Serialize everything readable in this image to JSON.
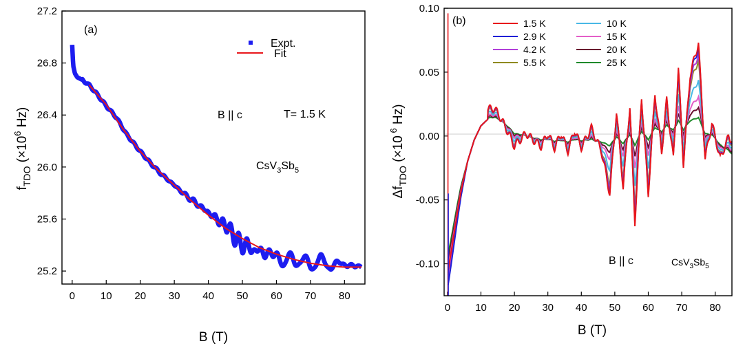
{
  "chart_data": [
    {
      "type": "line",
      "panel_label": "(a)",
      "xlabel": "B (T)",
      "ylabel": {
        "main": "f",
        "sub": "TDO",
        "rest": " (×10",
        "sup": "6",
        "end": " Hz)"
      },
      "xlim": [
        -3,
        86
      ],
      "ylim": [
        25.1,
        27.2
      ],
      "xticks": [
        0,
        10,
        20,
        30,
        40,
        50,
        60,
        70,
        80
      ],
      "yticks": [
        25.2,
        25.6,
        26.0,
        26.4,
        26.8,
        27.2
      ],
      "ytick_labels": [
        "25.2",
        "25.6",
        "26.0",
        "26.4",
        "26.8",
        "27.2"
      ],
      "legend": [
        {
          "name": "Expt.",
          "color": "#1d1df0",
          "marker": "square"
        },
        {
          "name": "Fit",
          "color": "#e8161b",
          "marker": "line"
        }
      ],
      "annotations": [
        {
          "text": "B || c"
        },
        {
          "text": "T= 1.5 K"
        },
        {
          "main": "CsV",
          "s1": "3",
          "mid": "Sb",
          "s2": "5"
        }
      ],
      "series": [
        {
          "name": "Expt.",
          "color": "#1d1df0",
          "x": [
            0,
            0.3,
            0.8,
            1.5,
            3,
            5,
            7,
            10,
            13,
            16,
            20,
            23,
            26,
            30,
            33,
            36,
            40,
            43,
            46,
            48,
            50,
            53,
            55,
            57,
            60,
            63,
            66,
            70,
            73,
            76,
            80,
            83,
            85
          ],
          "y": [
            26.94,
            26.78,
            26.72,
            26.69,
            26.67,
            26.63,
            26.57,
            26.47,
            26.38,
            26.25,
            26.12,
            26.03,
            25.95,
            25.86,
            25.79,
            25.73,
            25.65,
            25.59,
            25.53,
            25.45,
            25.4,
            25.38,
            25.33,
            25.36,
            25.3,
            25.28,
            25.29,
            25.25,
            25.28,
            25.24,
            25.26,
            25.23,
            25.24
          ],
          "osc": [
            [
              40,
              0.015,
              2.7
            ],
            [
              48,
              0.04,
              2.3
            ],
            [
              55,
              0.03,
              3.0
            ],
            [
              62,
              0.035,
              4.5
            ],
            [
              72,
              0.035,
              4.8
            ]
          ]
        },
        {
          "name": "Fit",
          "color": "#e8161b",
          "x": [
            5,
            10,
            15,
            20,
            25,
            30,
            35,
            40,
            45,
            50,
            55,
            60,
            65,
            70,
            75,
            80,
            85
          ],
          "y": [
            26.63,
            26.48,
            26.29,
            26.12,
            25.98,
            25.86,
            25.74,
            25.63,
            25.53,
            25.45,
            25.38,
            25.33,
            25.29,
            25.26,
            25.24,
            25.23,
            25.23
          ]
        }
      ]
    },
    {
      "type": "line",
      "panel_label": "(b)",
      "xlabel": "B (T)",
      "ylabel": {
        "pre": "Δf",
        "sub": "TDO",
        "rest": " (×10",
        "sup": " 6",
        "end": " Hz)"
      },
      "xlim": [
        -1,
        85
      ],
      "ylim": [
        -0.125,
        0.1
      ],
      "xticks": [
        0,
        10,
        20,
        30,
        40,
        50,
        60,
        70,
        80
      ],
      "yticks": [
        -0.1,
        -0.05,
        0.0,
        0.05,
        0.1
      ],
      "ytick_labels": [
        "-0.10",
        "-0.05",
        "0.00",
        "0.05",
        "0.10"
      ],
      "annotations": [
        {
          "text": "B || c"
        },
        {
          "main": "CsV",
          "s1": "3",
          "mid": "Sb",
          "s2": "5"
        }
      ],
      "background": {
        "x": [
          0,
          1,
          2,
          3,
          4,
          6,
          8,
          10,
          12,
          14,
          16,
          18,
          20,
          25,
          30,
          35,
          40,
          45,
          50,
          55,
          60,
          65,
          70,
          75,
          80,
          85
        ],
        "y": [
          -0.105,
          -0.09,
          -0.074,
          -0.058,
          -0.043,
          -0.02,
          -0.003,
          0.008,
          0.013,
          0.014,
          0.012,
          0.008,
          0.003,
          -0.001,
          -0.003,
          -0.004,
          -0.003,
          -0.004,
          -0.003,
          -0.001,
          0.002,
          0.006,
          0.008,
          0.008,
          -0.002,
          -0.015
        ]
      },
      "oscillation_peaks": {
        "x": [
          14,
          20,
          23.5,
          28,
          30,
          32,
          34,
          36,
          38,
          40,
          43,
          46,
          48.5,
          50.5,
          52.5,
          54.5,
          56,
          58,
          60,
          62,
          64,
          65.5,
          67.5,
          69,
          70.5,
          72.5,
          75,
          77,
          79,
          81.5,
          84
        ],
        "y": [
          0.008,
          -0.011,
          0.002,
          -0.006,
          0.005,
          -0.006,
          0.006,
          -0.008,
          0.008,
          -0.006,
          0.01,
          -0.008,
          -0.042,
          0.022,
          -0.038,
          0.025,
          -0.068,
          0.03,
          -0.048,
          0.03,
          -0.018,
          0.022,
          -0.025,
          0.045,
          -0.03,
          0.04,
          0.065,
          -0.022,
          0.01,
          -0.012,
          0.012
        ]
      },
      "spikes": [
        {
          "name": "1.5 K",
          "x": 0.15,
          "y": [
            -0.125,
            0.096
          ]
        },
        {
          "name": "2.9 K",
          "x": 0.25,
          "y": [
            -0.125,
            -0.045
          ]
        }
      ],
      "series": [
        {
          "name": "1.5 K",
          "color": "#e8161b",
          "amp": 1.0,
          "start": -0.108
        },
        {
          "name": "2.9 K",
          "color": "#1f1fd6",
          "amp": 0.96,
          "start": -0.12
        },
        {
          "name": "4.2 K",
          "color": "#b13fd9",
          "amp": 0.88,
          "start": -0.115
        },
        {
          "name": "5.5 K",
          "color": "#8f8a1f",
          "amp": 0.8,
          "start": -0.11
        },
        {
          "name": "10 K",
          "color": "#48b8e6",
          "amp": 0.55,
          "start": -0.112
        },
        {
          "name": "15 K",
          "color": "#e35ec8",
          "amp": 0.35,
          "start": -0.105
        },
        {
          "name": "20 K",
          "color": "#6a0f2f",
          "amp": 0.22,
          "start": -0.1
        },
        {
          "name": "25 K",
          "color": "#1f8a2b",
          "amp": 0.1,
          "start": -0.095
        }
      ]
    }
  ]
}
